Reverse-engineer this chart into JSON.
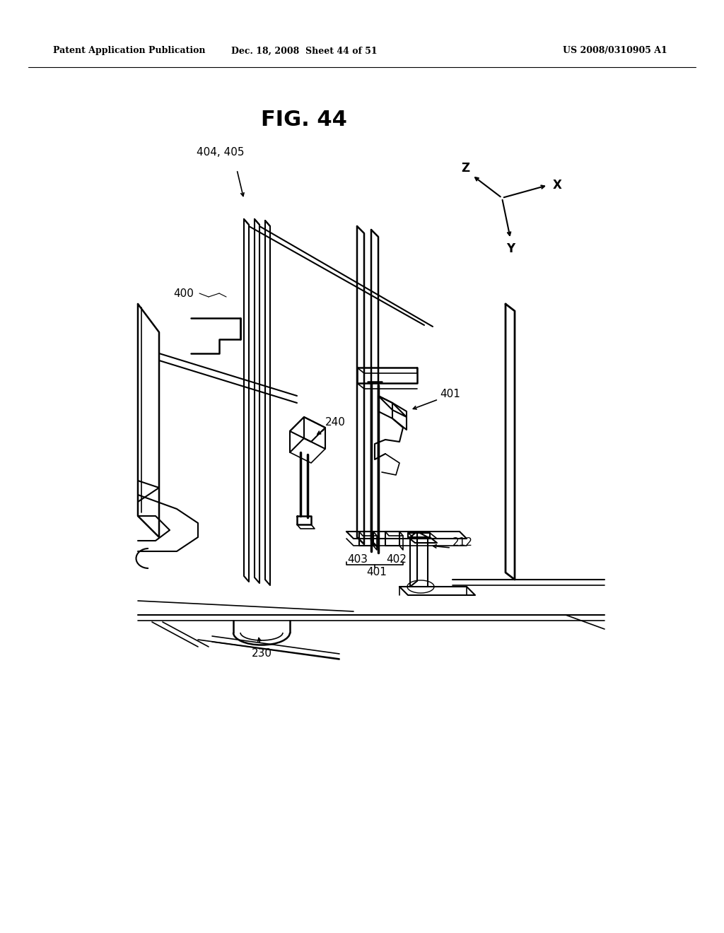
{
  "bg_color": "#ffffff",
  "line_color": "#000000",
  "header_left": "Patent Application Publication",
  "header_mid": "Dec. 18, 2008  Sheet 44 of 51",
  "header_right": "US 2008/0310905 A1",
  "fig_title": "FIG. 44",
  "labels": {
    "404_405": "404, 405",
    "400": "400",
    "401a": "401",
    "401b": "401",
    "402": "402",
    "403": "403",
    "240": "240",
    "212": "212",
    "230": "230"
  },
  "axes_labels": {
    "X": "X",
    "Y": "Y",
    "Z": "Z"
  }
}
